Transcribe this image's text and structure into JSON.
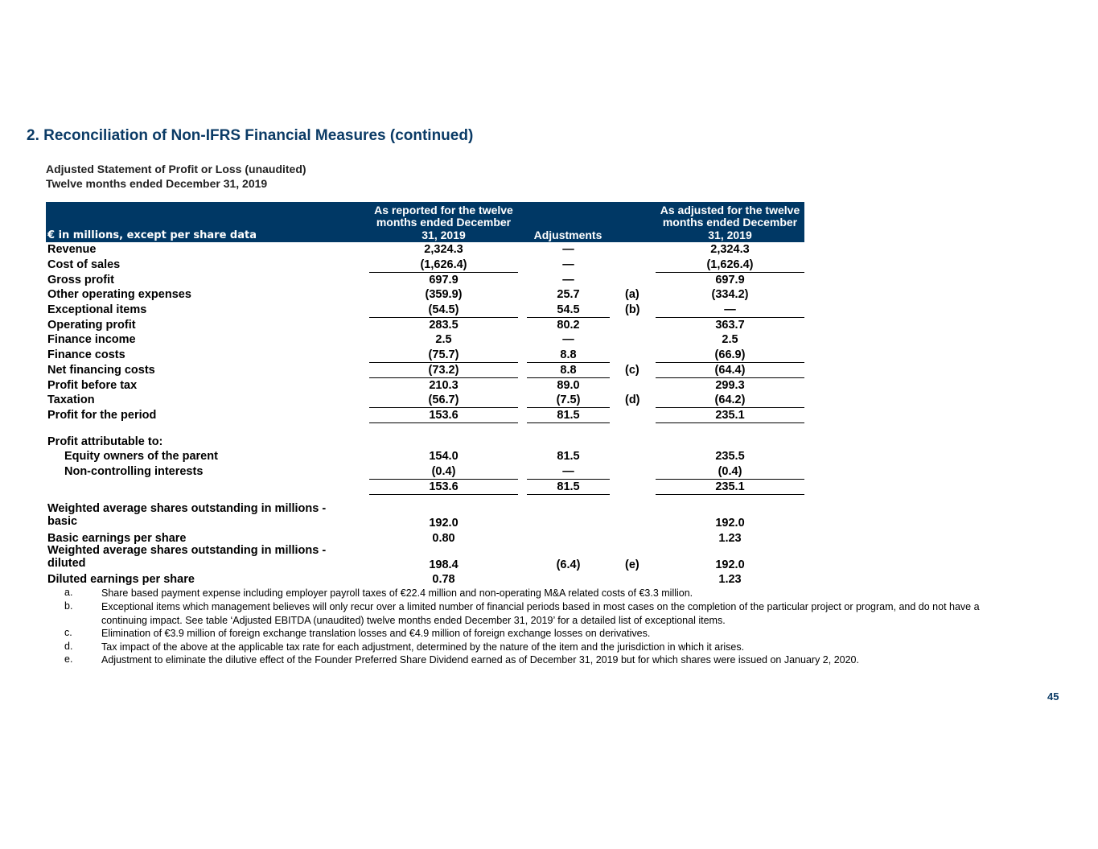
{
  "header": {
    "title": "2. Reconciliation of Non-IFRS Financial Measures (continued)",
    "subtitle": "Adjusted Statement of Profit or Loss (unaudited)",
    "period": "Twelve months ended December 31, 2019"
  },
  "table": {
    "columns": {
      "label": "€ in millions, except per share data",
      "reported": "As reported for the twelve months ended December 31, 2019",
      "adjustment": "Adjustments",
      "adjusted": "As adjusted for the twelve months ended December 31, 2019"
    },
    "rows": [
      {
        "label": "Revenue",
        "reported": "2,324.3",
        "adjustment": "—",
        "adjusted": "2,324.3"
      },
      {
        "label": "Cost of sales",
        "reported": "(1,626.4)",
        "adjustment": "—",
        "adjusted": "(1,626.4)"
      },
      {
        "label": "Gross profit",
        "reported": "697.9",
        "adjustment": "—",
        "adjusted": "697.9"
      },
      {
        "label": "Other operating expenses",
        "reported": "(359.9)",
        "adjustment": "25.7",
        "note": "(a)",
        "adjusted": "(334.2)"
      },
      {
        "label": "Exceptional items",
        "reported": "(54.5)",
        "adjustment": "54.5",
        "note": "(b)",
        "adjusted": "—"
      },
      {
        "label": "Operating profit",
        "reported": "283.5",
        "adjustment": "80.2",
        "adjusted": "363.7"
      },
      {
        "label": "Finance income",
        "reported": "2.5",
        "adjustment": "—",
        "adjusted": "2.5"
      },
      {
        "label": "Finance costs",
        "reported": "(75.7)",
        "adjustment": "8.8",
        "adjusted": "(66.9)"
      },
      {
        "label": "Net financing costs",
        "reported": "(73.2)",
        "adjustment": "8.8",
        "note": "(c)",
        "adjusted": "(64.4)"
      },
      {
        "label": "Profit before tax",
        "reported": "210.3",
        "adjustment": "89.0",
        "adjusted": "299.3"
      },
      {
        "label": "Taxation",
        "reported": "(56.7)",
        "adjustment": "(7.5)",
        "note": "(d)",
        "adjusted": "(64.2)"
      },
      {
        "label": "Profit for the period",
        "reported": "153.6",
        "adjustment": "81.5",
        "adjusted": "235.1"
      },
      {
        "label": "Profit attributable to:"
      },
      {
        "label": "Equity owners of the parent",
        "reported": "154.0",
        "adjustment": "81.5",
        "adjusted": "235.5"
      },
      {
        "label": "Non-controlling interests",
        "reported": "(0.4)",
        "adjustment": "—",
        "adjusted": "(0.4)"
      },
      {
        "reported": "153.6",
        "adjustment": "81.5",
        "adjusted": "235.1"
      },
      {
        "label": "Weighted average shares outstanding in millions - basic",
        "reported": "192.0",
        "adjusted": "192.0"
      },
      {
        "label": "Basic earnings per share",
        "reported": "0.80",
        "adjusted": "1.23"
      },
      {
        "label": "Weighted average shares outstanding in millions - diluted",
        "reported": "198.4",
        "adjustment": "(6.4)",
        "note": "(e)",
        "adjusted": "192.0"
      },
      {
        "label": "Diluted earnings per share",
        "reported": "0.78",
        "adjusted": "1.23"
      }
    ]
  },
  "footnotes": [
    {
      "letter": "a.",
      "text": "Share based payment expense including employer payroll taxes of €22.4 million and non-operating M&A related costs of €3.3 million."
    },
    {
      "letter": "b.",
      "text": "Exceptional items which management believes will only recur over a limited number of financial periods based in most cases on the completion of the particular project or program, and do not have a continuing impact. See table ‘Adjusted EBITDA (unaudited) twelve months ended December 31, 2019’ for a detailed list of exceptional items."
    },
    {
      "letter": "c.",
      "text": "Elimination of €3.9 million of foreign exchange translation losses and €4.9 million of foreign exchange losses on derivatives."
    },
    {
      "letter": "d.",
      "text": "Tax impact of the above at the applicable tax rate for each adjustment, determined by the nature of the item and the jurisdiction in which it arises."
    },
    {
      "letter": "e.",
      "text": "Adjustment to eliminate the dilutive effect of the Founder Preferred Share Dividend earned as of December 31, 2019 but for which shares were issued on January 2, 2020."
    }
  ],
  "page_number": "45"
}
